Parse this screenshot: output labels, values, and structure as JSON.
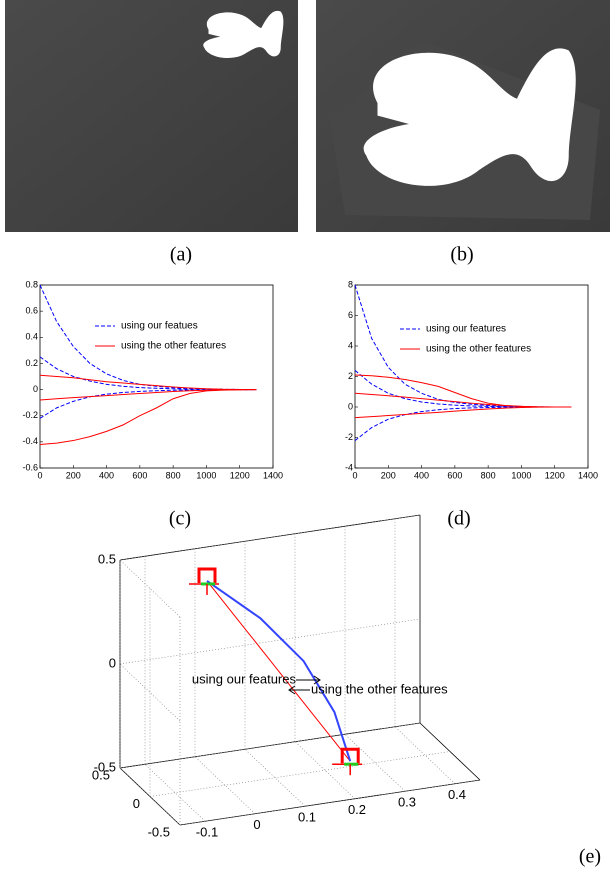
{
  "captions": [
    "(a)",
    "(b)",
    "(c)",
    "(d)",
    "(e)"
  ],
  "chart_data": [
    {
      "type": "line",
      "x": [
        0,
        100,
        200,
        300,
        400,
        500,
        600,
        700,
        800,
        900,
        1000,
        1100,
        1200,
        1300
      ],
      "xlim": [
        0,
        1400
      ],
      "xticks": [
        0,
        200,
        400,
        600,
        800,
        1000,
        1200,
        1400
      ],
      "ylim": [
        -0.6,
        0.8
      ],
      "yticks": [
        -0.6,
        -0.4,
        -0.2,
        0,
        0.2,
        0.4,
        0.6,
        0.8
      ],
      "series": [
        {
          "name": "using our featues",
          "color": "#0000ff",
          "style": "dashed",
          "curves": [
            [
              0.8,
              0.52,
              0.33,
              0.2,
              0.12,
              0.07,
              0.04,
              0.025,
              0.015,
              0.008,
              0.004,
              0.002,
              0.001,
              0
            ],
            [
              0.25,
              0.16,
              0.1,
              0.065,
              0.04,
              0.025,
              0.015,
              0.01,
              0.006,
              0.003,
              0.002,
              0.001,
              0,
              0
            ],
            [
              -0.22,
              -0.14,
              -0.09,
              -0.055,
              -0.035,
              -0.022,
              -0.014,
              -0.009,
              -0.005,
              -0.003,
              -0.002,
              -0.001,
              0,
              0
            ]
          ]
        },
        {
          "name": "using  the other features",
          "color": "#ff0000",
          "style": "solid",
          "curves": [
            [
              0.11,
              0.1,
              0.09,
              0.075,
              0.06,
              0.05,
              0.04,
              0.03,
              0.02,
              0.012,
              0.006,
              0.002,
              0.001,
              0
            ],
            [
              -0.08,
              -0.07,
              -0.062,
              -0.054,
              -0.046,
              -0.038,
              -0.03,
              -0.022,
              -0.015,
              -0.009,
              -0.005,
              -0.002,
              -0.001,
              0
            ],
            [
              -0.42,
              -0.41,
              -0.39,
              -0.36,
              -0.32,
              -0.27,
              -0.2,
              -0.14,
              -0.07,
              -0.03,
              -0.01,
              -0.004,
              -0.001,
              0
            ]
          ]
        }
      ]
    },
    {
      "type": "line",
      "x": [
        0,
        100,
        200,
        300,
        400,
        500,
        600,
        700,
        800,
        900,
        1000,
        1100,
        1200,
        1300
      ],
      "xlim": [
        0,
        1400
      ],
      "xticks": [
        0,
        200,
        400,
        600,
        800,
        1000,
        1200,
        1400
      ],
      "ylim": [
        -4,
        8
      ],
      "yticks": [
        -4,
        -2,
        0,
        2,
        4,
        6,
        8
      ],
      "series": [
        {
          "name": "using our features",
          "color": "#0000ff",
          "style": "dashed",
          "curves": [
            [
              8,
              4.5,
              2.6,
              1.5,
              0.9,
              0.5,
              0.3,
              0.18,
              0.1,
              0.05,
              0.03,
              0.01,
              0,
              0
            ],
            [
              2.4,
              1.5,
              0.9,
              0.55,
              0.33,
              0.2,
              0.12,
              0.07,
              0.04,
              0.02,
              0.01,
              0,
              0,
              0
            ],
            [
              -2.2,
              -1.35,
              -0.8,
              -0.5,
              -0.3,
              -0.18,
              -0.1,
              -0.06,
              -0.035,
              -0.02,
              -0.01,
              0,
              0,
              0
            ]
          ]
        },
        {
          "name": "using the other features",
          "color": "#ff0000",
          "style": "solid",
          "curves": [
            [
              2.1,
              2.05,
              1.95,
              1.8,
              1.6,
              1.35,
              0.95,
              0.55,
              0.25,
              0.1,
              0.04,
              0.01,
              0,
              0
            ],
            [
              0.9,
              0.82,
              0.74,
              0.65,
              0.55,
              0.45,
              0.35,
              0.25,
              0.16,
              0.09,
              0.04,
              0.01,
              0,
              0
            ],
            [
              -0.7,
              -0.63,
              -0.56,
              -0.49,
              -0.42,
              -0.35,
              -0.27,
              -0.2,
              -0.13,
              -0.07,
              -0.03,
              -0.01,
              0,
              0
            ]
          ]
        }
      ]
    },
    {
      "type": "line3d",
      "xlim": [
        -0.15,
        0.45
      ],
      "ylim": [
        -0.5,
        0.5
      ],
      "zlim": [
        -0.5,
        0.5
      ],
      "xticks": [
        -0.1,
        0,
        0.1,
        0.2,
        0.3,
        0.4
      ],
      "yticks": [
        -0.5,
        0,
        0.5
      ],
      "zticks": [
        -0.5,
        0,
        0.5
      ],
      "grid": true,
      "series": [
        {
          "color": "#ff0000",
          "x": [
            0,
            0.065,
            0.13,
            0.195,
            0.26
          ],
          "y": [
            0.3,
            0.245,
            0.19,
            0.135,
            0.08
          ],
          "z": [
            0.4,
            0.175,
            -0.05,
            -0.275,
            -0.5
          ]
        },
        {
          "color": "#3344ff",
          "x": [
            0,
            0.1,
            0.18,
            0.235,
            0.26
          ],
          "y": [
            0.3,
            0.245,
            0.19,
            0.135,
            0.08
          ],
          "z": [
            0.4,
            0.2,
            -0.02,
            -0.27,
            -0.5
          ]
        }
      ],
      "annotations": [
        "using the other features",
        "using our features"
      ]
    }
  ]
}
